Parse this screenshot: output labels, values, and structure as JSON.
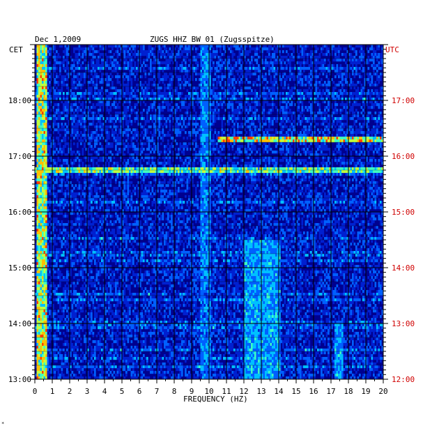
{
  "chart_data": {
    "type": "heatmap",
    "date_label": "Dec 1,2009",
    "title": "ZUGS HHZ BW 01 (Zugsspitze)",
    "left_axis_label": "CET",
    "right_axis_label": "UTC",
    "xlabel": "FREQUENCY (HZ)",
    "xlim": [
      0,
      20
    ],
    "x_ticks": [
      "0",
      "1",
      "2",
      "3",
      "4",
      "5",
      "6",
      "7",
      "8",
      "9",
      "10",
      "11",
      "12",
      "13",
      "14",
      "15",
      "16",
      "17",
      "18",
      "19",
      "20"
    ],
    "cet_range_hours": [
      13,
      19
    ],
    "cet_ticks": [
      {
        "hour": 18,
        "label": "18:00"
      },
      {
        "hour": 17,
        "label": "17:00"
      },
      {
        "hour": 16,
        "label": "16:00"
      },
      {
        "hour": 15,
        "label": "15:00"
      },
      {
        "hour": 14,
        "label": "14:00"
      },
      {
        "hour": 13,
        "label": "13:00"
      }
    ],
    "utc_ticks": [
      {
        "hour": 17,
        "label": "17:00"
      },
      {
        "hour": 16,
        "label": "16:00"
      },
      {
        "hour": 15,
        "label": "15:00"
      },
      {
        "hour": 14,
        "label": "14:00"
      },
      {
        "hour": 13,
        "label": "13:00"
      },
      {
        "hour": 12,
        "label": "12:00"
      }
    ],
    "utc_offset_hours": -1,
    "grid": true,
    "colormap": [
      "#00008f",
      "#0020d0",
      "#0060ff",
      "#00c0ff",
      "#40ffc0",
      "#c0ff40",
      "#ffc000",
      "#ff4000",
      "#c00000"
    ],
    "features": [
      {
        "description": "strong low-frequency energy",
        "freq_hz": [
          0.1,
          0.7
        ],
        "time_cet": [
          13.0,
          19.0
        ],
        "level": 0.7
      },
      {
        "description": "broadband band",
        "freq_hz": [
          0.0,
          20.0
        ],
        "time_cet": [
          16.72,
          16.8
        ],
        "level": 0.6
      },
      {
        "description": "band",
        "freq_hz": [
          10.5,
          20.0
        ],
        "time_cet": [
          17.3,
          17.36
        ],
        "level": 0.75
      },
      {
        "description": "line near 9.7 Hz",
        "freq_hz": [
          9.5,
          10.0
        ],
        "time_cet": [
          13.0,
          19.0
        ],
        "level": 0.35
      },
      {
        "description": "events near 13 Hz",
        "freq_hz": [
          12.0,
          14.0
        ],
        "time_cet": [
          13.0,
          15.5
        ],
        "level": 0.4
      },
      {
        "description": "line near 17.5 Hz",
        "freq_hz": [
          17.2,
          17.6
        ],
        "time_cet": [
          13.0,
          14.0
        ],
        "level": 0.4
      }
    ]
  },
  "footer_mark": "*"
}
